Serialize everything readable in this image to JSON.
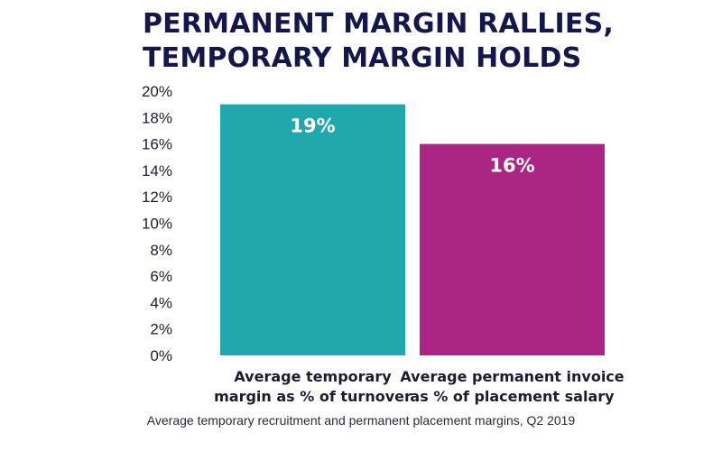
{
  "chart": {
    "title_lines": [
      "PERMANENT MARGIN RALLIES,",
      "TEMPORARY MARGIN HOLDS"
    ],
    "caption": "Average temporary recruitment and permanent placement margins, Q2 2019"
  },
  "chart_data": {
    "type": "bar",
    "title": "PERMANENT MARGIN RALLIES, TEMPORARY MARGIN HOLDS",
    "categories": [
      [
        "Average temporary",
        "margin as % of turnover"
      ],
      [
        "Average permanent invoice",
        "as % of placement salary"
      ]
    ],
    "values": [
      19,
      16
    ],
    "data_labels": [
      "19%",
      "16%"
    ],
    "colors": [
      "#20a8ac",
      "#ab2584"
    ],
    "ylim": [
      0,
      20
    ],
    "yticks": [
      0,
      2,
      4,
      6,
      8,
      10,
      12,
      14,
      16,
      18,
      20
    ],
    "ytick_labels": [
      "0%",
      "2%",
      "4%",
      "6%",
      "8%",
      "10%",
      "12%",
      "14%",
      "16%",
      "18%",
      "20%"
    ],
    "grid": false,
    "legend": "none"
  }
}
